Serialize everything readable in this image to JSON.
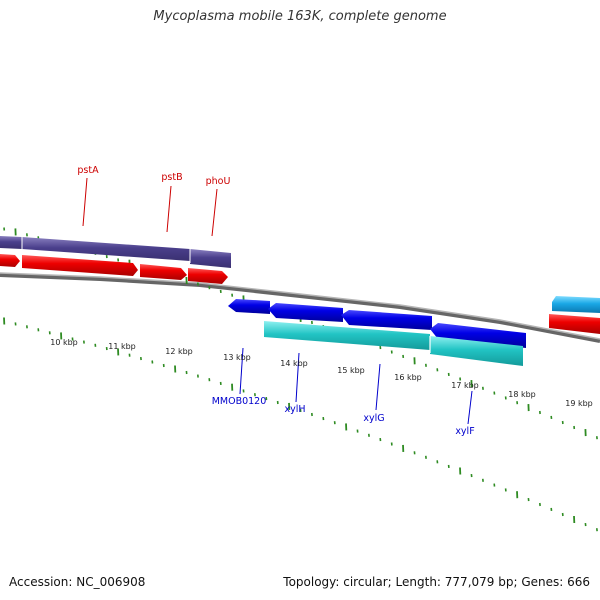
{
  "title": "Mycoplasma mobile 163K, complete genome",
  "footer": {
    "accession": "Accession: NC_006908",
    "topology": "Topology: circular; Length: 777,079 bp; Genes: 666"
  },
  "colors": {
    "forward_gene_label": "#cc0000",
    "reverse_gene_label": "#0000cc",
    "tick": "#2e8b22",
    "backbone": "#888888",
    "forward_cds": "#ff0000",
    "forward_gene": "#5a4e9a",
    "reverse_cds": "#0000ee",
    "reverse_gene": "#22cccc"
  },
  "ruler_labels": [
    "10 kbp",
    "11 kbp",
    "12 kbp",
    "13 kbp",
    "14 kbp",
    "15 kbp",
    "16 kbp",
    "17 kbp",
    "18 kbp",
    "19 kbp"
  ],
  "forward_labels": [
    "pstA",
    "pstB",
    "phoU"
  ],
  "reverse_labels": [
    "MMOB0120",
    "xylH",
    "xylG",
    "xylF"
  ]
}
